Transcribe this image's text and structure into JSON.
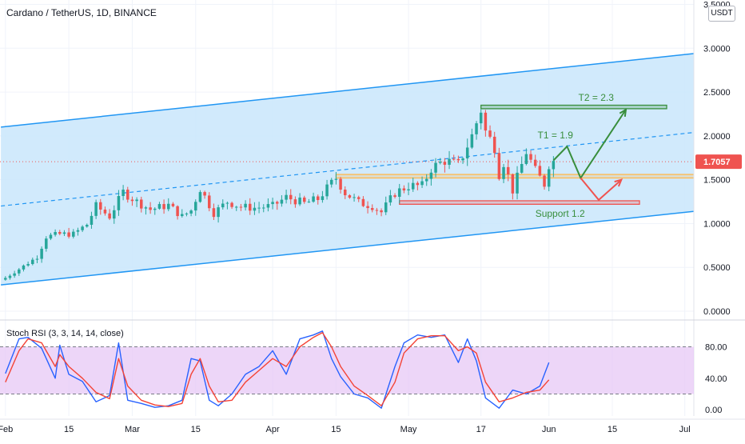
{
  "header": {
    "title": "Cardano / TetherUS, 1D, BINANCE",
    "currency_badge": "USDT"
  },
  "chart_data": [
    {
      "type": "candlestick",
      "title": "Cardano / TetherUS, 1D, BINANCE",
      "price_axis": {
        "ticks": [
          "3.5000",
          "3.0000",
          "2.5000",
          "2.0000",
          "1.5000",
          "1.0000",
          "0.5000",
          "0.0000"
        ],
        "tick_values": [
          3.5,
          3.0,
          2.5,
          2.0,
          1.5,
          1.0,
          0.5,
          0.0
        ],
        "ylim": [
          -0.1,
          3.55
        ]
      },
      "current_price": {
        "label": "1.7057",
        "value": 1.7057,
        "color": "#ef5350"
      },
      "time_axis": {
        "ticks": [
          "Feb",
          "15",
          "Mar",
          "15",
          "Apr",
          "15",
          "May",
          "17",
          "Jun",
          "15",
          "Jul"
        ],
        "tick_days": [
          1,
          15,
          29,
          43,
          60,
          74,
          90,
          106,
          121,
          135,
          151
        ]
      },
      "colors": {
        "up": "#26a69a",
        "down": "#ef5350",
        "channel": "#2196f3",
        "channel_fill": "#c9e6fb",
        "target": "#388e3c",
        "support": "#ef5350",
        "resistance": "#ffb74d"
      },
      "candles": {
        "start_day": 1,
        "count": 122,
        "anchors": [
          [
            1,
            0.38
          ],
          [
            4,
            0.48
          ],
          [
            8,
            0.62
          ],
          [
            10,
            0.85
          ],
          [
            13,
            0.88
          ],
          [
            16,
            0.88
          ],
          [
            19,
            0.99
          ],
          [
            21,
            1.2
          ],
          [
            24,
            1.08
          ],
          [
            27,
            1.36
          ],
          [
            30,
            1.25
          ],
          [
            33,
            1.16
          ],
          [
            37,
            1.21
          ],
          [
            40,
            1.08
          ],
          [
            42,
            1.15
          ],
          [
            44,
            1.4
          ],
          [
            47,
            1.12
          ],
          [
            50,
            1.25
          ],
          [
            53,
            1.19
          ],
          [
            56,
            1.18
          ],
          [
            60,
            1.2
          ],
          [
            63,
            1.3
          ],
          [
            67,
            1.23
          ],
          [
            70,
            1.28
          ],
          [
            72,
            1.4
          ],
          [
            74,
            1.52
          ],
          [
            76,
            1.35
          ],
          [
            79,
            1.24
          ],
          [
            82,
            1.2
          ],
          [
            84,
            1.13
          ],
          [
            87,
            1.35
          ],
          [
            90,
            1.43
          ],
          [
            93,
            1.43
          ],
          [
            95,
            1.63
          ],
          [
            98,
            1.72
          ],
          [
            101,
            1.67
          ],
          [
            104,
            2.0
          ],
          [
            106,
            2.3
          ],
          [
            107,
            2.05
          ],
          [
            109,
            1.88
          ],
          [
            110,
            1.57
          ],
          [
            111,
            1.7
          ],
          [
            113,
            1.38
          ],
          [
            114,
            1.52
          ],
          [
            116,
            1.82
          ],
          [
            118,
            1.6
          ],
          [
            120,
            1.45
          ],
          [
            121,
            1.68
          ],
          [
            122,
            1.71
          ]
        ]
      },
      "channel": {
        "upper": [
          [
            0,
            2.1
          ],
          [
            155,
            2.95
          ]
        ],
        "lower": [
          [
            0,
            0.3
          ],
          [
            155,
            1.15
          ]
        ],
        "midline": [
          [
            0,
            1.2
          ],
          [
            155,
            2.05
          ]
        ]
      },
      "annotations": [
        {
          "text": "T2 = 2.3",
          "color": "#388e3c",
          "value": 2.32
        },
        {
          "text": "T1 = 1.9",
          "color": "#388e3c",
          "value": 1.9
        },
        {
          "text": "Support 1.2",
          "color": "#388e3c",
          "value": 1.24
        }
      ],
      "zones": [
        {
          "name": "resistance-zone",
          "from_day": 74,
          "to_day": 155,
          "low": 1.52,
          "high": 1.56,
          "color": "#ffb74d"
        },
        {
          "name": "support-zone",
          "from_day": 88,
          "to_day": 141,
          "low": 1.22,
          "high": 1.26,
          "color": "#ef5350"
        },
        {
          "name": "target-zone",
          "from_day": 106,
          "to_day": 147,
          "low": 2.31,
          "high": 2.35,
          "color": "#388e3c"
        }
      ],
      "projection_paths": [
        {
          "color": "#388e3c",
          "points": [
            [
              122,
              1.72
            ],
            [
              125,
              1.88
            ],
            [
              128,
              1.52
            ],
            [
              138,
              2.3
            ]
          ]
        },
        {
          "color": "#ef5350",
          "points": [
            [
              128,
              1.52
            ],
            [
              132,
              1.27
            ],
            [
              137,
              1.5
            ]
          ]
        }
      ]
    },
    {
      "type": "line",
      "title": "Stoch RSI (3, 3, 14, 14, close)",
      "ticks": [
        "80.00",
        "40.00",
        "0.00"
      ],
      "tick_values": [
        80,
        40,
        0
      ],
      "ylim": [
        -8,
        112
      ],
      "band": [
        20,
        80
      ],
      "series": [
        {
          "color": "#2962ff",
          "x": [
            1,
            4,
            6,
            9,
            12,
            13,
            15,
            18,
            21,
            24,
            26,
            28,
            31,
            34,
            37,
            40,
            42,
            44,
            46,
            48,
            51,
            54,
            57,
            60,
            63,
            66,
            69,
            71,
            73,
            75,
            78,
            81,
            84,
            87,
            89,
            92,
            95,
            98,
            101,
            103,
            105,
            107,
            110,
            113,
            116,
            119,
            121
          ],
          "values": [
            46,
            90,
            92,
            78,
            40,
            82,
            45,
            36,
            10,
            18,
            85,
            12,
            8,
            3,
            5,
            12,
            65,
            62,
            12,
            5,
            20,
            45,
            55,
            75,
            45,
            90,
            95,
            100,
            65,
            42,
            20,
            15,
            2,
            55,
            85,
            95,
            92,
            95,
            60,
            90,
            62,
            15,
            2,
            25,
            20,
            30,
            60
          ]
        },
        {
          "color": "#f44336",
          "x": [
            1,
            4,
            6,
            9,
            12,
            13,
            15,
            18,
            21,
            24,
            26,
            28,
            31,
            34,
            37,
            40,
            42,
            44,
            46,
            48,
            51,
            54,
            57,
            60,
            63,
            66,
            69,
            71,
            73,
            75,
            78,
            81,
            84,
            87,
            89,
            92,
            95,
            98,
            101,
            103,
            105,
            107,
            110,
            113,
            116,
            119,
            121
          ],
          "values": [
            35,
            75,
            90,
            85,
            55,
            70,
            55,
            40,
            22,
            14,
            65,
            30,
            12,
            6,
            4,
            8,
            45,
            65,
            30,
            10,
            12,
            35,
            50,
            65,
            55,
            80,
            92,
            98,
            80,
            55,
            30,
            18,
            5,
            35,
            72,
            90,
            94,
            94,
            75,
            80,
            72,
            35,
            10,
            15,
            22,
            25,
            38
          ]
        }
      ]
    }
  ]
}
